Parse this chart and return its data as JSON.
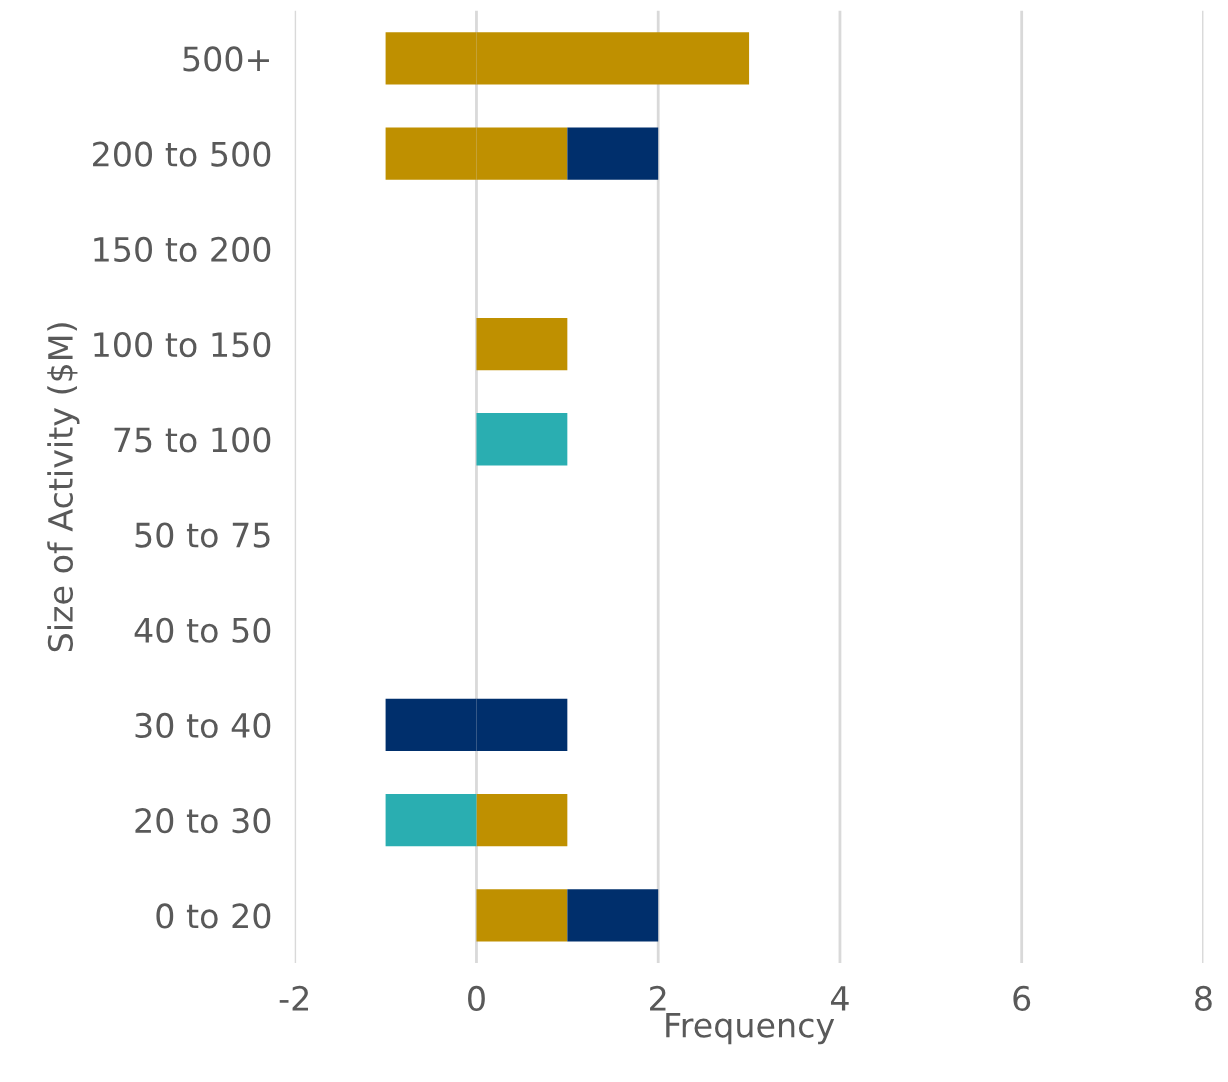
{
  "chart_data": {
    "type": "bar",
    "orientation": "horizontal",
    "stacked": true,
    "xlabel": "Frequency",
    "ylabel": "Size of Activity ($M)",
    "categories": [
      "500+",
      "200 to 500",
      "150 to 200",
      "100 to 150",
      "75 to 100",
      "50 to 75",
      "40 to 50",
      "30 to 40",
      "20 to 30",
      "0 to 20"
    ],
    "series": [
      {
        "color": "#bf9000",
        "values": [
          3,
          1,
          null,
          1,
          null,
          null,
          null,
          null,
          1,
          1
        ]
      },
      {
        "color": "#002f6c",
        "values": [
          null,
          1,
          null,
          null,
          null,
          null,
          null,
          1,
          null,
          1
        ]
      },
      {
        "color": "#2aaeb1",
        "values": [
          null,
          null,
          null,
          null,
          1,
          null,
          null,
          null,
          null,
          null
        ]
      },
      {
        "color": "#bf9000",
        "values": [
          -1,
          -1,
          null,
          null,
          null,
          null,
          null,
          null,
          null,
          null
        ]
      },
      {
        "color": "#002f6c",
        "values": [
          null,
          null,
          null,
          null,
          null,
          null,
          null,
          -1,
          null,
          null
        ]
      },
      {
        "color": "#2aaeb1",
        "values": [
          null,
          null,
          null,
          null,
          null,
          null,
          null,
          null,
          -1,
          null
        ]
      }
    ],
    "xlim": [
      -2,
      8
    ],
    "xticks": [
      -2,
      0,
      2,
      4,
      6,
      8
    ],
    "grid": "x"
  }
}
